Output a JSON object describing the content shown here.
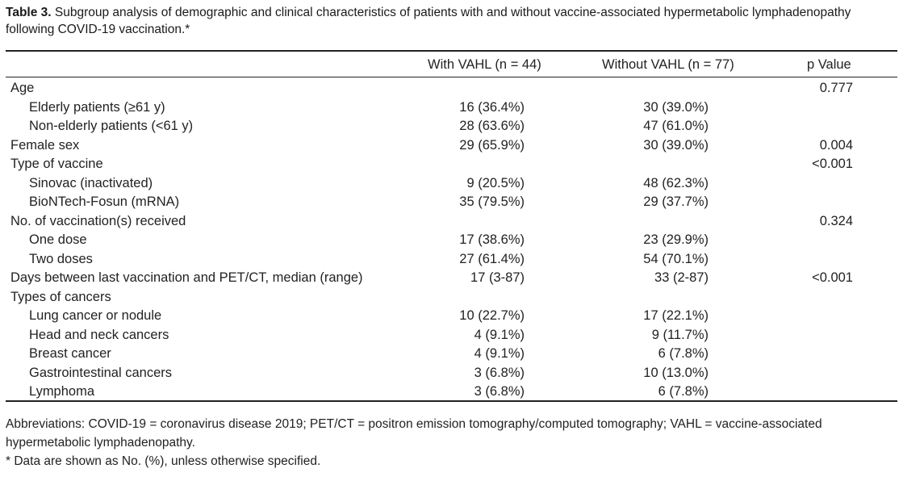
{
  "caption": {
    "label": "Table 3.",
    "text": " Subgroup analysis of demographic and clinical characteristics of patients with and without vaccine-associated hypermetabolic lymphadenopathy following COVID-19 vaccination.*"
  },
  "table": {
    "headers": [
      "With VAHL (n = 44)",
      "Without VAHL (n = 77)",
      "p Value"
    ],
    "rows": [
      {
        "label": "Age",
        "indent": false,
        "with": "",
        "without": "",
        "p": "0.777"
      },
      {
        "label": "Elderly patients (≥61 y)",
        "indent": true,
        "with": "16 (36.4%)",
        "without": "30 (39.0%)",
        "p": ""
      },
      {
        "label": "Non-elderly patients (<61 y)",
        "indent": true,
        "with": "28 (63.6%)",
        "without": "47 (61.0%)",
        "p": ""
      },
      {
        "label": "Female sex",
        "indent": false,
        "with": "29 (65.9%)",
        "without": "30 (39.0%)",
        "p": "0.004"
      },
      {
        "label": "Type of vaccine",
        "indent": false,
        "with": "",
        "without": "",
        "p": "<0.001"
      },
      {
        "label": "Sinovac (inactivated)",
        "indent": true,
        "with": "9 (20.5%)",
        "without": "48 (62.3%)",
        "p": ""
      },
      {
        "label": "BioNTech-Fosun (mRNA)",
        "indent": true,
        "with": "35 (79.5%)",
        "without": "29 (37.7%)",
        "p": ""
      },
      {
        "label": "No. of vaccination(s) received",
        "indent": false,
        "with": "",
        "without": "",
        "p": "0.324"
      },
      {
        "label": "One dose",
        "indent": true,
        "with": "17 (38.6%)",
        "without": "23 (29.9%)",
        "p": ""
      },
      {
        "label": "Two doses",
        "indent": true,
        "with": "27 (61.4%)",
        "without": "54 (70.1%)",
        "p": ""
      },
      {
        "label": "Days between last vaccination and PET/CT, median (range)",
        "indent": false,
        "with": "17 (3-87)",
        "without": "33 (2-87)",
        "p": "<0.001"
      },
      {
        "label": "Types of cancers",
        "indent": false,
        "with": "",
        "without": "",
        "p": ""
      },
      {
        "label": "Lung cancer or nodule",
        "indent": true,
        "with": "10 (22.7%)",
        "without": "17 (22.1%)",
        "p": ""
      },
      {
        "label": "Head and neck cancers",
        "indent": true,
        "with": "4 (9.1%)",
        "without": "9 (11.7%)",
        "p": ""
      },
      {
        "label": "Breast cancer",
        "indent": true,
        "with": "4 (9.1%)",
        "without": "6 (7.8%)",
        "p": ""
      },
      {
        "label": "Gastrointestinal cancers",
        "indent": true,
        "with": "3 (6.8%)",
        "without": "10 (13.0%)",
        "p": ""
      },
      {
        "label": "Lymphoma",
        "indent": true,
        "with": "3 (6.8%)",
        "without": "6 (7.8%)",
        "p": ""
      }
    ]
  },
  "footnotes": {
    "abbreviations": "Abbreviations: COVID-19 = coronavirus disease 2019; PET/CT = positron emission tomography/computed tomography; VAHL = vaccine-associated hypermetabolic lymphadenopathy.",
    "note": "* Data are shown as No. (%), unless otherwise specified."
  }
}
